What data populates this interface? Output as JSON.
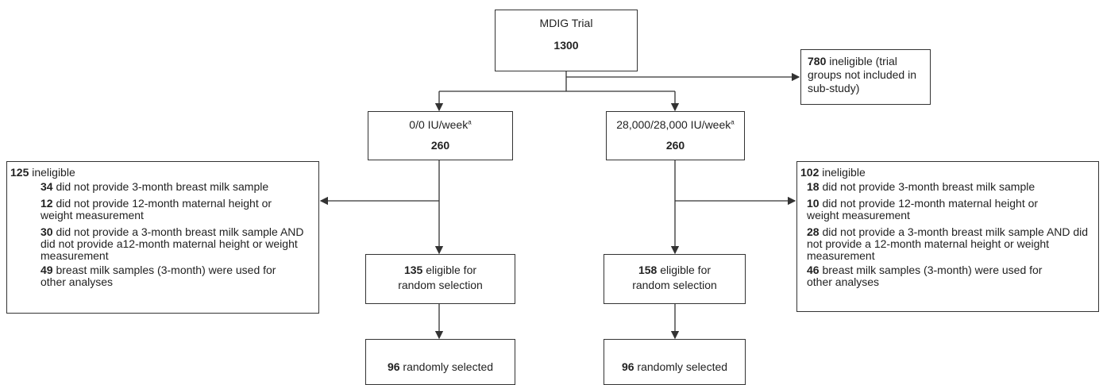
{
  "trial": {
    "label": "MDIG Trial",
    "count": 1300
  },
  "ineligible_trial": {
    "count": 780,
    "text": "ineligible (trial groups not included in sub-study)"
  },
  "arms": [
    {
      "label": "0/0 IU/week",
      "note": "a",
      "count": 260,
      "exclusion": {
        "count": 125,
        "text": "ineligible",
        "items": [
          {
            "count": 34,
            "text": "did not provide 3-month breast milk sample"
          },
          {
            "count": 12,
            "text": "did not provide 12-month maternal height or weight measurement"
          },
          {
            "count": 30,
            "text": "did not provide a 3-month breast milk sample AND did not provide a12-month maternal height or weight measurement"
          },
          {
            "count": 49,
            "text": "breast milk samples (3-month) were used for other analyses"
          }
        ]
      },
      "eligible": {
        "count": 135,
        "text": "eligible for random selection"
      },
      "selected": {
        "count": 96,
        "text": "randomly selected"
      }
    },
    {
      "label": "28,000/28,000 IU/week",
      "note": "a",
      "count": 260,
      "exclusion": {
        "count": 102,
        "text": "ineligible",
        "items": [
          {
            "count": 18,
            "text": "did not provide 3-month breast milk sample"
          },
          {
            "count": 10,
            "text": "did not provide 12-month maternal height or weight measurement"
          },
          {
            "count": 28,
            "text": "did not provide a 3-month breast milk sample AND did not provide a 12-month maternal height or weight measurement"
          },
          {
            "count": 46,
            "text": "breast milk samples (3-month) were used for other analyses"
          }
        ]
      },
      "eligible": {
        "count": 158,
        "text": "eligible for random selection"
      },
      "selected": {
        "count": 96,
        "text": "randomly selected"
      }
    }
  ]
}
